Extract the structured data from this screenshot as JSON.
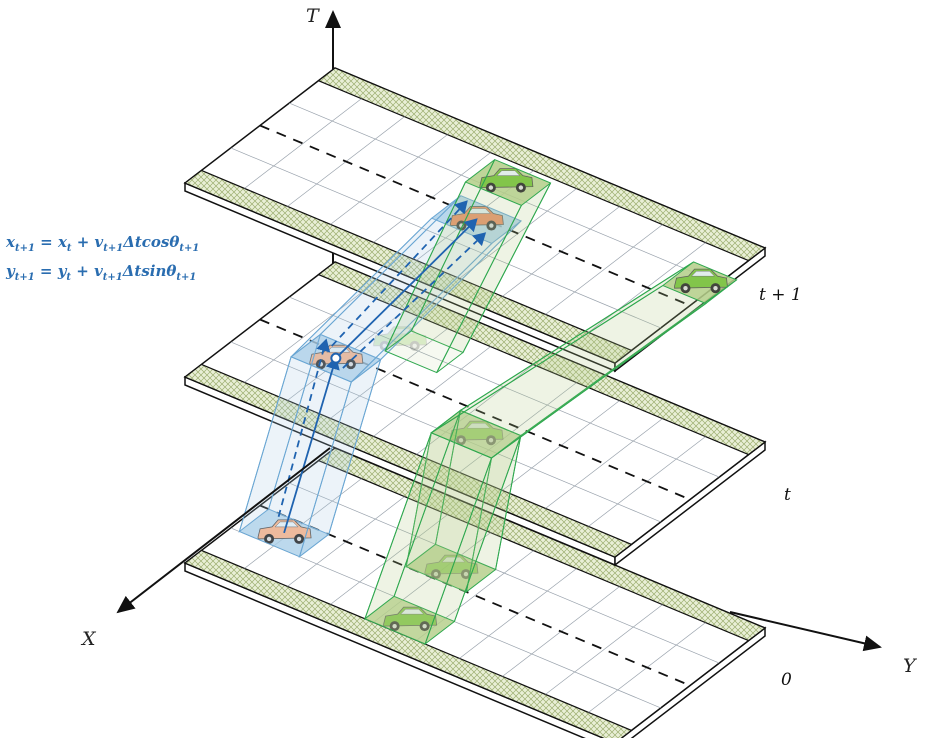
{
  "axes": {
    "t": "T",
    "x": "X",
    "y": "Y"
  },
  "layers": [
    {
      "label": "0"
    },
    {
      "label": "t"
    },
    {
      "label": "t + 1"
    }
  ],
  "equations": [
    {
      "lhs": "x",
      "lhs_sub": "t+1",
      "eq": " = ",
      "term1": "x",
      "term1_sub": "t",
      "plus": " + ",
      "term2": "v",
      "term2_sub": "t+1",
      "rest": "Δtcosθ",
      "rest_sub": "t+1"
    },
    {
      "lhs": "y",
      "lhs_sub": "t+1",
      "eq": " = ",
      "term1": "y",
      "term1_sub": "t",
      "plus": " + ",
      "term2": "v",
      "term2_sub": "t+1",
      "rest": "Δtsinθ",
      "rest_sub": "t+1"
    }
  ],
  "colors": {
    "ego_car": "#f08a5d",
    "ego_car_faded": "#f6b893",
    "other_car": "#7cc441",
    "ego_cell": "#a9cfe8",
    "other_cell": "#b5cf8a",
    "trajectory_blue": "#1f63b0",
    "trajectory_green": "#2fa84f",
    "shoulder": "#c8d5a3"
  }
}
